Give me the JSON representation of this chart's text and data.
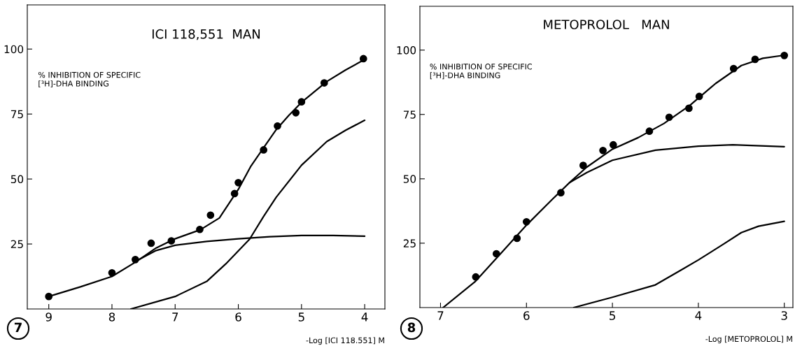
{
  "chart_data": [
    {
      "type": "line",
      "title": "ICI 118,551  MAN",
      "xlabel": "-Log [ICI 118.551] M",
      "ylabel": "% INHIBITION OF SPECIFIC\n[³H]-DHA BINDING",
      "annotations": [
        "7"
      ],
      "xlim": [
        9.34,
        3.68
      ],
      "ylim": [
        0,
        117
      ],
      "xticks": [
        9,
        8,
        7,
        6,
        5,
        4
      ],
      "yticks": [
        25,
        50,
        75,
        100
      ],
      "grid": false,
      "legend": false,
      "series": [
        {
          "type": "scatter",
          "marker": "circle",
          "color": "#000000",
          "x": [
            9,
            8,
            7.63,
            7.38,
            7.06,
            6.61,
            6.44,
            6.06,
            6.0,
            5.6,
            5.38,
            5.09,
            5.0,
            4.64,
            4.02
          ],
          "values": [
            4.8,
            13.9,
            19.0,
            25.3,
            26.2,
            30.6,
            36.1,
            44.4,
            48.6,
            61.2,
            70.4,
            75.5,
            79.7,
            87.0,
            96.3
          ]
        },
        {
          "color": "#000000",
          "x": [
            9,
            8.5,
            8,
            7.63,
            7.3,
            7,
            6.6,
            6.3,
            6,
            5.8,
            5.6,
            5.4,
            5.2,
            5,
            4.6,
            4.3,
            4
          ],
          "values": [
            4.8,
            8.5,
            12.5,
            18,
            23.5,
            27,
            30.5,
            35,
            46,
            55,
            62,
            69,
            74.5,
            79.5,
            87.5,
            92,
            96
          ]
        },
        {
          "color": "#000000",
          "x": [
            7.65,
            7.3,
            7,
            6.5,
            6,
            5.5,
            5,
            4.5,
            4
          ],
          "values": [
            18,
            22.5,
            24.5,
            26,
            27,
            27.8,
            28.3,
            28.3,
            28
          ]
        },
        {
          "color": "#000000",
          "x": [
            7.7,
            7,
            6.5,
            6.2,
            5.82,
            5.6,
            5.4,
            5.0,
            4.6,
            4.3,
            4
          ],
          "values": [
            0,
            4.8,
            10.6,
            17.3,
            26.9,
            35.6,
            43,
            55.3,
            64.4,
            68.8,
            72.6
          ]
        }
      ]
    },
    {
      "type": "line",
      "title": "METOPROLOL   MAN",
      "xlabel": "-Log [METOPROLOL] M",
      "ylabel": "% INHIBITION OF SPECIFIC\n[³H]-DHA BINDING",
      "annotations": [
        "8"
      ],
      "xlim": [
        7.24,
        2.9
      ],
      "ylim": [
        0,
        117
      ],
      "xticks": [
        7,
        6,
        5,
        4,
        3
      ],
      "yticks": [
        25,
        50,
        75,
        100
      ],
      "grid": false,
      "legend": false,
      "series": [
        {
          "type": "scatter",
          "marker": "circle",
          "color": "#000000",
          "x": [
            6.59,
            6.35,
            6.11,
            6.0,
            5.6,
            5.34,
            5.11,
            4.99,
            4.57,
            4.34,
            4.11,
            3.99,
            3.59,
            3.34,
            3.0
          ],
          "values": [
            11.9,
            20.9,
            26.9,
            33.3,
            44.6,
            55.2,
            61.0,
            63.2,
            68.5,
            73.9,
            77.4,
            82.0,
            92.8,
            96.4,
            97.9
          ]
        },
        {
          "color": "#000000",
          "x": [
            6.97,
            6.6,
            6.3,
            6.0,
            5.7,
            5.5,
            5.3,
            5.0,
            4.7,
            4.4,
            4.1,
            3.8,
            3.5,
            3.25,
            3.0
          ],
          "values": [
            0,
            10,
            21,
            32,
            42,
            48.5,
            54.5,
            61.5,
            66,
            71.5,
            78.5,
            87,
            94,
            96.8,
            98
          ]
        },
        {
          "color": "#000000",
          "x": [
            5.5,
            5.3,
            5.0,
            4.5,
            4.0,
            3.6,
            3.0
          ],
          "values": [
            48.5,
            52.4,
            57.2,
            61.1,
            62.7,
            63.2,
            62.5
          ]
        },
        {
          "color": "#000000",
          "x": [
            5.45,
            5.0,
            4.5,
            4.2,
            4.0,
            3.7,
            3.5,
            3.3,
            3.0
          ],
          "values": [
            0,
            4.0,
            8.8,
            14.6,
            18.5,
            24.8,
            29.1,
            31.6,
            33.5
          ]
        }
      ]
    }
  ]
}
